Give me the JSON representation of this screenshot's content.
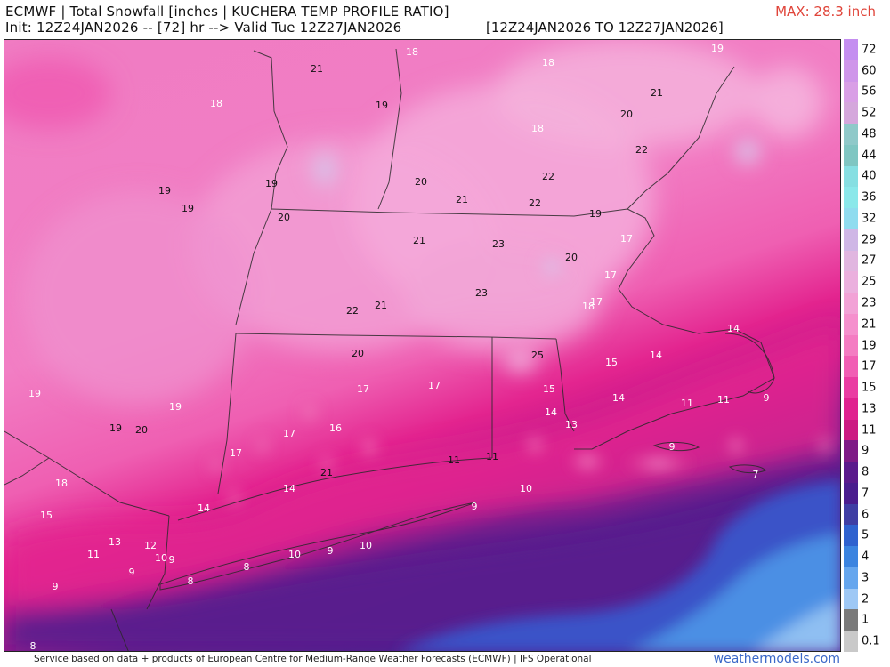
{
  "header": {
    "title": "ECMWF | Total Snowfall [inches | KUCHERA TEMP PROFILE RATIO]",
    "subtitle": "Init: 12Z24JAN2026 -- [72] hr --> Valid Tue 12Z27JAN2026",
    "valid_range": "[12Z24JAN2026 TO 12Z27JAN2026]",
    "max_label": "MAX: 28.3 inch"
  },
  "colors": {
    "max_label": "#e0453a",
    "brand_link": "#3a68c8",
    "land_base": "#f07cc3",
    "coast_magenta": "#e21b88",
    "ocean_purple": "#4a1d8e",
    "ocean_blue": "#3a63d8"
  },
  "colorbar": {
    "labels": [
      "72",
      "60",
      "56",
      "52",
      "48",
      "44",
      "40",
      "36",
      "32",
      "29",
      "27",
      "25",
      "23",
      "21",
      "19",
      "17",
      "15",
      "13",
      "11",
      "9",
      "8",
      "7",
      "6",
      "5",
      "4",
      "3",
      "2",
      "1",
      "0.1"
    ],
    "colors": [
      "#c48ef0",
      "#cf96ea",
      "#d99fe6",
      "#d5a7dc",
      "#8fc9c9",
      "#7fc6c2",
      "#86dfe2",
      "#8ae8ea",
      "#8fdcef",
      "#cfb7e6",
      "#e1b6e0",
      "#ebb0de",
      "#f2a2d6",
      "#f590cd",
      "#f47cc2",
      "#f15eb4",
      "#ea3ca2",
      "#e0228f",
      "#cc1a82",
      "#7e1a86",
      "#5b1a8c",
      "#4a1d8e",
      "#3f3ea4",
      "#2f62cf",
      "#3b84e0",
      "#65a6ee",
      "#9ec8f5",
      "#7a7a7a",
      "#c9c9c9"
    ]
  },
  "map_values": [
    {
      "text": "21",
      "tone": "dark"
    },
    {
      "text": "18",
      "tone": "light"
    },
    {
      "text": "18",
      "tone": "light"
    },
    {
      "text": "19",
      "tone": "light"
    },
    {
      "text": "18",
      "tone": "light"
    },
    {
      "text": "19",
      "tone": "dark"
    },
    {
      "text": "21",
      "tone": "dark"
    },
    {
      "text": "20",
      "tone": "dark"
    },
    {
      "text": "18",
      "tone": "light"
    },
    {
      "text": "22",
      "tone": "dark"
    },
    {
      "text": "19",
      "tone": "dark"
    },
    {
      "text": "19",
      "tone": "dark"
    },
    {
      "text": "20",
      "tone": "dark"
    },
    {
      "text": "21",
      "tone": "dark"
    },
    {
      "text": "22",
      "tone": "dark"
    },
    {
      "text": "22",
      "tone": "dark"
    },
    {
      "text": "19",
      "tone": "dark"
    },
    {
      "text": "20",
      "tone": "dark"
    },
    {
      "text": "21",
      "tone": "dark"
    },
    {
      "text": "23",
      "tone": "dark"
    },
    {
      "text": "17",
      "tone": "light"
    },
    {
      "text": "19",
      "tone": "dark"
    },
    {
      "text": "20",
      "tone": "dark"
    },
    {
      "text": "17",
      "tone": "light"
    },
    {
      "text": "23",
      "tone": "dark"
    },
    {
      "text": "17",
      "tone": "light"
    },
    {
      "text": "18",
      "tone": "light"
    },
    {
      "text": "22",
      "tone": "dark"
    },
    {
      "text": "21",
      "tone": "dark"
    },
    {
      "text": "14",
      "tone": "light"
    },
    {
      "text": "20",
      "tone": "dark"
    },
    {
      "text": "25",
      "tone": "dark"
    },
    {
      "text": "15",
      "tone": "light"
    },
    {
      "text": "14",
      "tone": "light"
    },
    {
      "text": "17",
      "tone": "light"
    },
    {
      "text": "17",
      "tone": "light"
    },
    {
      "text": "15",
      "tone": "light"
    },
    {
      "text": "14",
      "tone": "light"
    },
    {
      "text": "19",
      "tone": "light"
    },
    {
      "text": "11",
      "tone": "light"
    },
    {
      "text": "11",
      "tone": "light"
    },
    {
      "text": "9",
      "tone": "light"
    },
    {
      "text": "19",
      "tone": "light"
    },
    {
      "text": "14",
      "tone": "light"
    },
    {
      "text": "13",
      "tone": "light"
    },
    {
      "text": "19",
      "tone": "dark"
    },
    {
      "text": "20",
      "tone": "dark"
    },
    {
      "text": "17",
      "tone": "light"
    },
    {
      "text": "16",
      "tone": "light"
    },
    {
      "text": "17",
      "tone": "light"
    },
    {
      "text": "11",
      "tone": "dark"
    },
    {
      "text": "11",
      "tone": "dark"
    },
    {
      "text": "9",
      "tone": "light"
    },
    {
      "text": "21",
      "tone": "dark"
    },
    {
      "text": "18",
      "tone": "light"
    },
    {
      "text": "14",
      "tone": "light"
    },
    {
      "text": "7",
      "tone": "light"
    },
    {
      "text": "10",
      "tone": "light"
    },
    {
      "text": "14",
      "tone": "light"
    },
    {
      "text": "15",
      "tone": "light"
    },
    {
      "text": "9",
      "tone": "light"
    },
    {
      "text": "13",
      "tone": "light"
    },
    {
      "text": "12",
      "tone": "light"
    },
    {
      "text": "11",
      "tone": "light"
    },
    {
      "text": "10",
      "tone": "light"
    },
    {
      "text": "9",
      "tone": "light"
    },
    {
      "text": "10",
      "tone": "light"
    },
    {
      "text": "9",
      "tone": "light"
    },
    {
      "text": "9",
      "tone": "light"
    },
    {
      "text": "10",
      "tone": "light"
    },
    {
      "text": "8",
      "tone": "light"
    },
    {
      "text": "8",
      "tone": "light"
    },
    {
      "text": "9",
      "tone": "light"
    },
    {
      "text": "8",
      "tone": "light"
    }
  ],
  "footer": {
    "attribution": "Service based on data + products of European Centre for Medium-Range Weather Forecasts (ECMWF) | IFS Operational",
    "brand": "weathermodels.com"
  }
}
